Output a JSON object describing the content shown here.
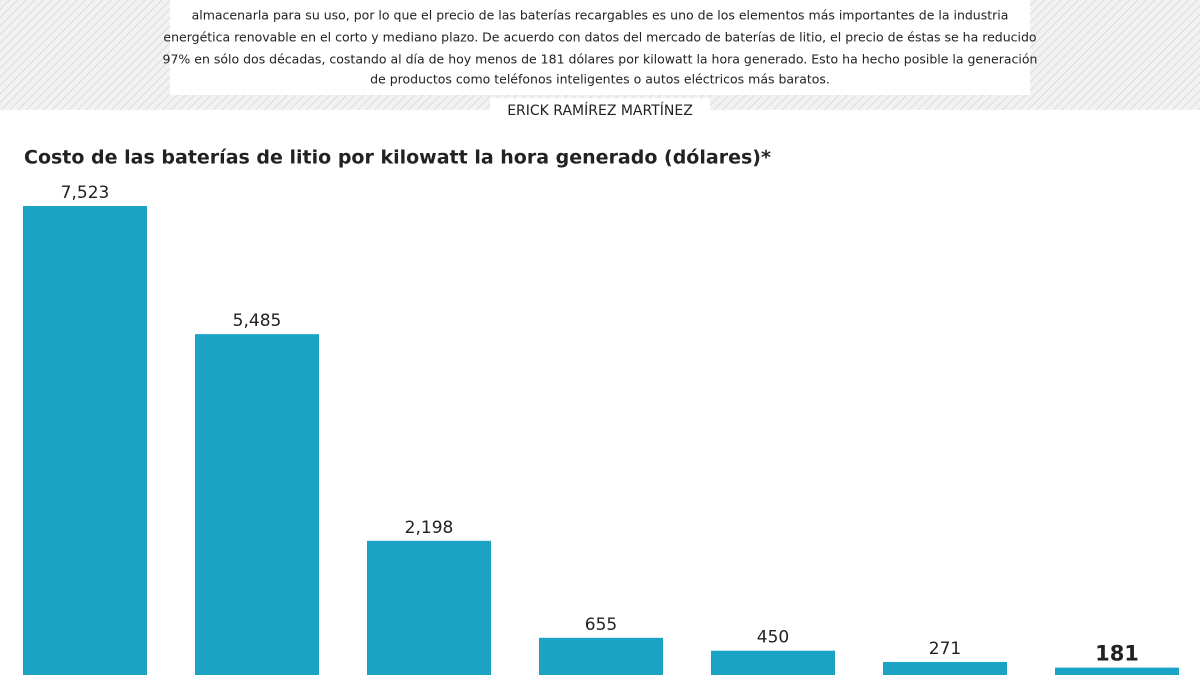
{
  "intro": [
    "almacenarla para su uso, por lo que el precio de las baterías recargables es uno de los elementos más importantes de la industria",
    "energética renovable en el corto y mediano plazo. De acuerdo con datos del mercado de baterías de litio, el precio de éstas se ha reducido",
    "97% en sólo dos décadas, costando al día de hoy menos de 181 dólares por kilowatt la hora generado. Esto ha hecho posible la generación",
    "de productos como teléfonos inteligentes o autos eléctricos más baratos."
  ],
  "author": "ERICK RAMÍREZ MARTÍNEZ",
  "chart_data": {
    "type": "bar",
    "title": "Costo de las baterías de litio por kilowatt la hora generado (dólares)*",
    "categories": [
      null,
      null,
      null,
      null,
      null,
      null,
      null
    ],
    "values": [
      7523,
      5485,
      2198,
      655,
      450,
      271,
      181
    ],
    "value_labels": [
      "7,523",
      "5,485",
      "2,198",
      "655",
      "450",
      "271",
      "181"
    ],
    "color": "#1ba3c6",
    "ylim": [
      0,
      7523
    ]
  }
}
